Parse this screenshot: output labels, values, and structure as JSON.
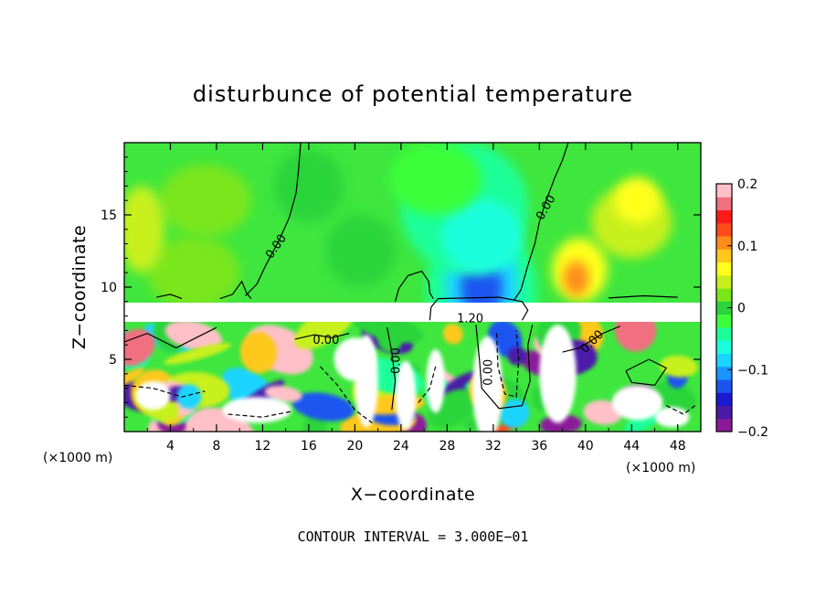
{
  "chart_data": {
    "type": "heatmap",
    "title": "disturbunce of potential temperature",
    "xlabel": "X−coordinate",
    "ylabel": "Z−coordinate",
    "x_unit_left": "(×1000 m)",
    "x_unit_right": "(×1000 m)",
    "xlim": [
      0,
      50
    ],
    "ylim": [
      0,
      20
    ],
    "x_ticks": [
      4,
      8,
      12,
      16,
      20,
      24,
      28,
      32,
      36,
      40,
      44,
      48
    ],
    "x_tick_labels": [
      "4",
      "8",
      "12",
      "16",
      "20",
      "24",
      "28",
      "32",
      "36",
      "40",
      "44",
      "48"
    ],
    "y_ticks": [
      5,
      10,
      15
    ],
    "y_tick_labels": [
      "5",
      "10",
      "15"
    ],
    "colorbar": {
      "range": [
        -0.2,
        0.2
      ],
      "tick_values": [
        0.2,
        0.1,
        0,
        -0.1,
        -0.2
      ],
      "tick_labels": [
        "0.2",
        "0.1",
        "0",
        "−0.1",
        "−0.2"
      ],
      "colors": [
        "#8a1a9a",
        "#4b1aa8",
        "#1a1ad0",
        "#1a55f0",
        "#1a95ff",
        "#1ad5ff",
        "#1affdd",
        "#1aff9a",
        "#3aff3a",
        "#2ad43a",
        "#7ae61a",
        "#c8f01a",
        "#ffff1a",
        "#ffc81a",
        "#ff8c1a",
        "#ff4a1a",
        "#ff1a1a",
        "#f07080",
        "#ffc0c8"
      ]
    },
    "background_value": 0.02,
    "blank_band_z": [
      7.6,
      8.9
    ],
    "contour_interval": 0.3,
    "contour_labels": [
      {
        "text": "0.00",
        "x": 13.2,
        "z": 12.8,
        "angle": -55
      },
      {
        "text": "0.00",
        "x": 36.6,
        "z": 15.5,
        "angle": -60
      },
      {
        "text": "0.00",
        "x": 17.5,
        "z": 6.3,
        "angle": 0
      },
      {
        "text": "0.00",
        "x": 23.6,
        "z": 4.9,
        "angle": -90
      },
      {
        "text": "0.00",
        "x": 31.6,
        "z": 4.1,
        "angle": -90
      },
      {
        "text": "0.00",
        "x": 40.6,
        "z": 6.2,
        "angle": -45
      },
      {
        "text": "1.20",
        "x": 30.0,
        "z": 7.8,
        "angle": 0
      }
    ]
  },
  "footer": {
    "contour_interval_text": "CONTOUR INTERVAL = 3.000E−01"
  }
}
